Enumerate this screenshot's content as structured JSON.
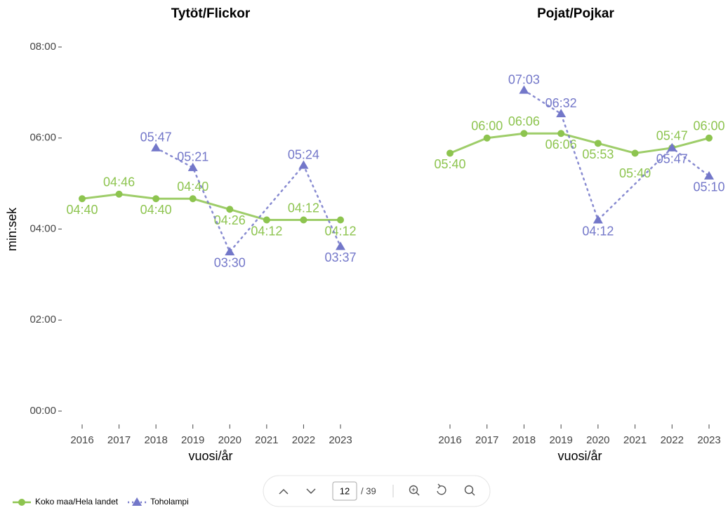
{
  "chart_data": [
    {
      "type": "line",
      "title": "Tytöt/Flickor",
      "y_label": "min:sek",
      "x_label": "vuosi/år",
      "ylim": [
        0,
        480
      ],
      "yticks": [
        {
          "value": 0,
          "label": "00:00"
        },
        {
          "value": 120,
          "label": "02:00"
        },
        {
          "value": 240,
          "label": "04:00"
        },
        {
          "value": 360,
          "label": "06:00"
        },
        {
          "value": 480,
          "label": "08:00"
        }
      ],
      "xlim": [
        2016,
        2023
      ],
      "xticks": [
        2016,
        2017,
        2018,
        2019,
        2020,
        2021,
        2022,
        2023
      ],
      "series": [
        {
          "name": "Koko maa/Hela landet",
          "color": "#8dc44f",
          "marker": "circle",
          "x": [
            2016,
            2017,
            2018,
            2019,
            2020,
            2021,
            2022,
            2023
          ],
          "values": [
            280,
            286,
            280,
            280,
            266,
            252,
            252,
            252
          ],
          "value_labels": [
            "04:40",
            "04:46",
            "04:40",
            "04:40",
            "04:26",
            "04:12",
            "04:12",
            "04:12"
          ]
        },
        {
          "name": "Toholampi",
          "color": "#7377c9",
          "marker": "triangle",
          "x": [
            2018,
            2019,
            2020,
            2022,
            2023
          ],
          "values": [
            347,
            321,
            210,
            324,
            217
          ],
          "value_labels": [
            "05:47",
            "05:21",
            "03:30",
            "05:24",
            "03:37"
          ]
        }
      ]
    },
    {
      "type": "line",
      "title": "Pojat/Pojkar",
      "x_label": "vuosi/år",
      "ylim": [
        0,
        480
      ],
      "xlim": [
        2016,
        2023
      ],
      "xticks": [
        2016,
        2017,
        2018,
        2019,
        2020,
        2021,
        2022,
        2023
      ],
      "series": [
        {
          "color": "#8dc44f",
          "marker": "circle",
          "x": [
            2016,
            2017,
            2018,
            2019,
            2020,
            2021,
            2022,
            2023
          ],
          "values": [
            340,
            360,
            366,
            366,
            353,
            340,
            347,
            360
          ],
          "value_labels": [
            "05:40",
            "06:00",
            "06:06",
            "06:06",
            "05:53",
            "05:40",
            "05:47",
            "06:00"
          ]
        },
        {
          "color": "#7377c9",
          "marker": "triangle",
          "x": [
            2018,
            2019,
            2020,
            2022,
            2023
          ],
          "values": [
            423,
            392,
            252,
            347,
            310
          ],
          "value_labels": [
            "07:03",
            "06:32",
            "04:12",
            "05:47",
            "05:10"
          ]
        }
      ]
    }
  ],
  "toolbar": {
    "page": "12",
    "total": "/ 39"
  }
}
